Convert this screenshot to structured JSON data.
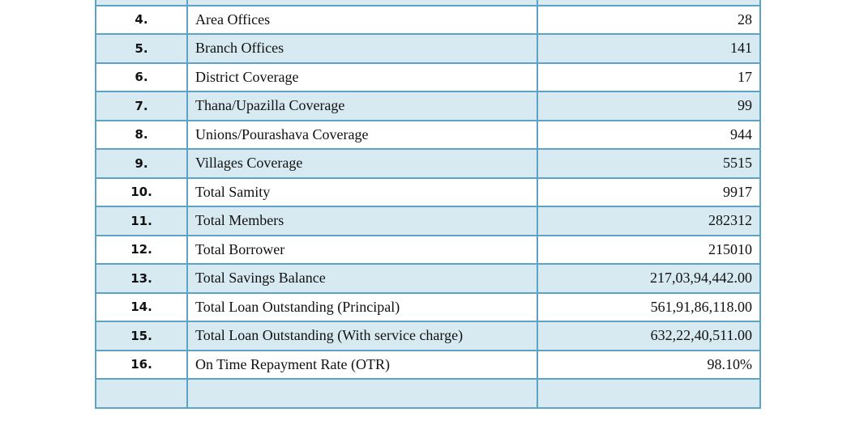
{
  "table": {
    "rows": [
      {
        "num": "",
        "label": "",
        "value": "",
        "shaded": true
      },
      {
        "num": "4.",
        "label": "Area Offices",
        "value": "28",
        "shaded": false
      },
      {
        "num": "5.",
        "label": "Branch Offices",
        "value": "141",
        "shaded": true
      },
      {
        "num": "6.",
        "label": "District Coverage",
        "value": "17",
        "shaded": false
      },
      {
        "num": "7.",
        "label": "Thana/Upazilla Coverage",
        "value": "99",
        "shaded": true
      },
      {
        "num": "8.",
        "label": "Unions/Pourashava Coverage",
        "value": "944",
        "shaded": false
      },
      {
        "num": "9.",
        "label": "Villages Coverage",
        "value": "5515",
        "shaded": true
      },
      {
        "num": "10.",
        "label": "Total Samity",
        "value": "9917",
        "shaded": false
      },
      {
        "num": "11.",
        "label": "Total Members",
        "value": "282312",
        "shaded": true
      },
      {
        "num": "12.",
        "label": "Total Borrower",
        "value": "215010",
        "shaded": false
      },
      {
        "num": "13.",
        "label": "Total Savings Balance",
        "value": "217,03,94,442.00",
        "shaded": true
      },
      {
        "num": "14.",
        "label": "Total Loan Outstanding (Principal)",
        "value": "561,91,86,118.00",
        "shaded": false
      },
      {
        "num": "15.",
        "label": "Total Loan Outstanding (With service charge)",
        "value": "632,22,40,511.00",
        "shaded": true
      },
      {
        "num": "16.",
        "label": "On Time Repayment Rate (OTR)",
        "value": "98.10%",
        "shaded": false
      },
      {
        "num": "",
        "label": "",
        "value": "",
        "shaded": true
      }
    ]
  }
}
